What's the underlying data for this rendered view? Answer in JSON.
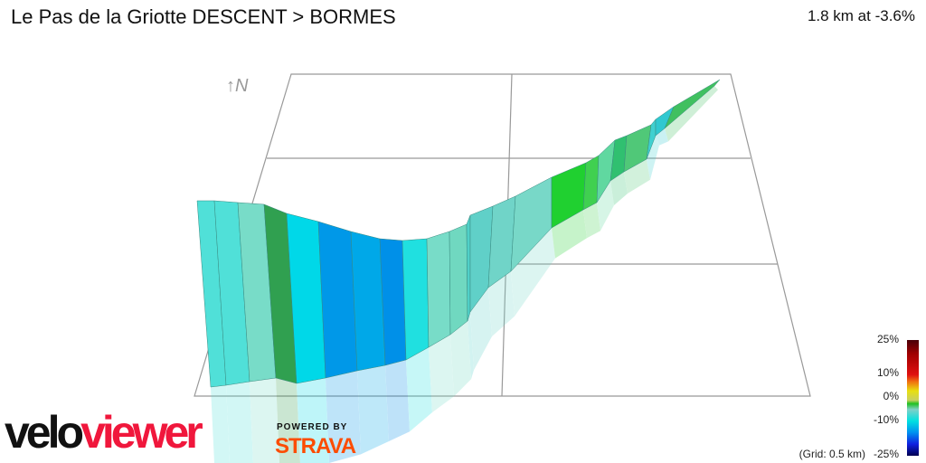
{
  "header": {
    "title": "Le Pas de la Griotte DESCENT > BORMES",
    "summary": "1.8 km at -3.6%"
  },
  "compass": {
    "label": "↑N"
  },
  "legend": {
    "ticks": [
      "25%",
      "10%",
      "0%",
      "-10%",
      "-25%"
    ],
    "grid_note": "(Grid: 0.5 km)"
  },
  "branding": {
    "logo_part1": "velo",
    "logo_part2": "viewer",
    "powered_by": "POWERED BY",
    "strava": "STRAVA"
  },
  "profile_colors": [
    "#50e0d8",
    "#50e0d8",
    "#78dcc8",
    "#30a050",
    "#00d8e8",
    "#0098e8",
    "#00a8e8",
    "#0090e8",
    "#20e0e0",
    "#78dcc8",
    "#70d8c0",
    "#50d0c8",
    "#60d0c8",
    "#70d4c8",
    "#78d8c8",
    "#20d030",
    "#40d050",
    "#60d8a0",
    "#30c070",
    "#50c878",
    "#40d0d0",
    "#30c8d0",
    "#40c060"
  ]
}
